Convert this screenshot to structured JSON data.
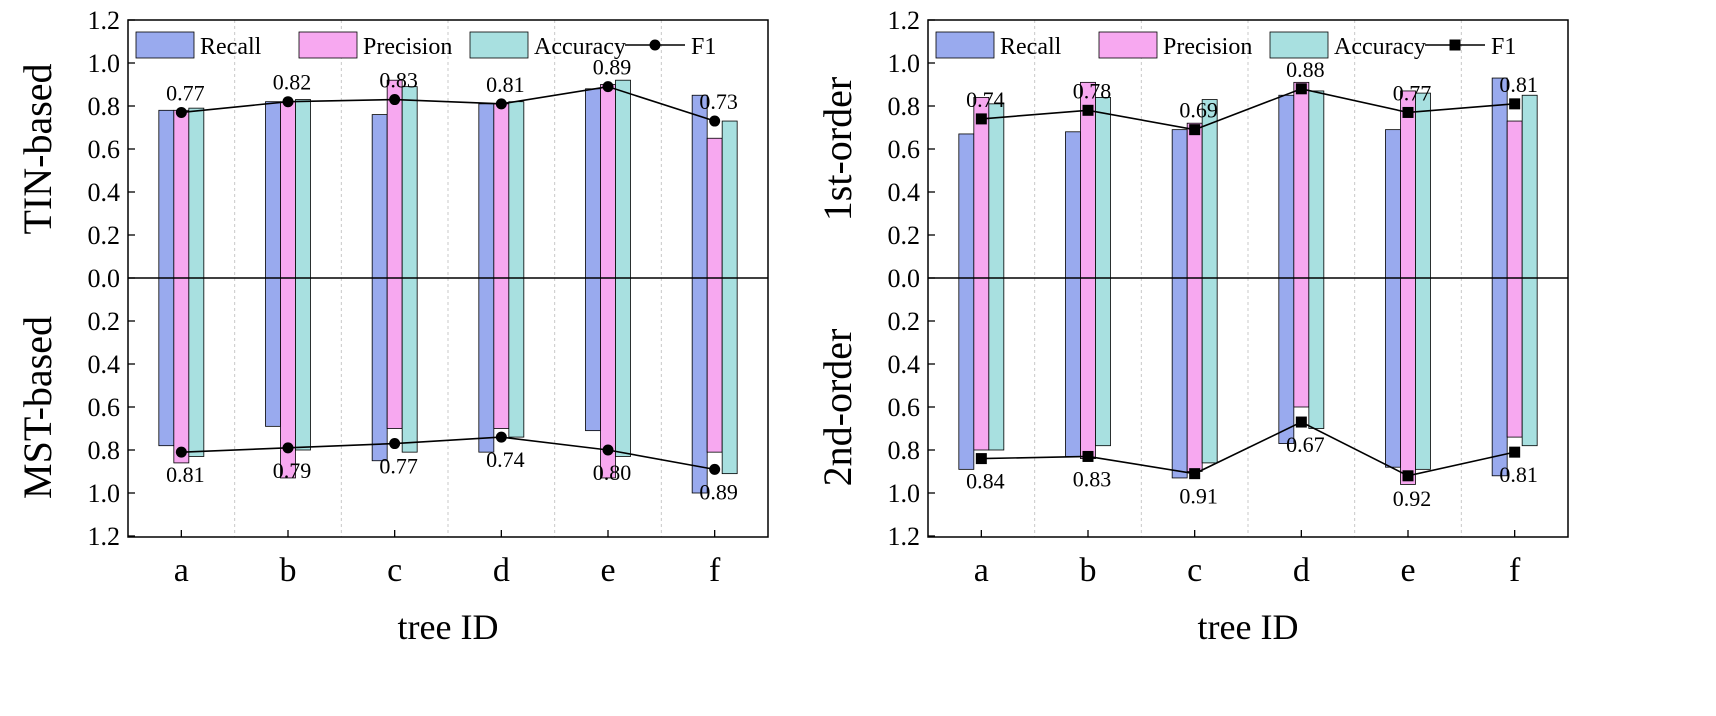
{
  "chart_data": {
    "type": "bar",
    "categories": [
      "a",
      "b",
      "c",
      "d",
      "e",
      "f"
    ],
    "xlabel": "tree ID",
    "yaxis_ticks": [
      "0.0",
      "0.2",
      "0.4",
      "0.6",
      "0.8",
      "1.0",
      "1.2"
    ],
    "legend_labels": [
      "Recall",
      "Precision",
      "Accuracy",
      "F1"
    ],
    "colors": {
      "recall": "#99aaee",
      "precision": "#f7a8f0",
      "accuracy": "#a8e0e0",
      "bar_edge": "#000000",
      "line": "#000000",
      "grid": "#c8c8c8"
    },
    "panels": [
      {
        "ylabel": "TIN-based",
        "direction": "up",
        "ylim": [
          0,
          1.2
        ],
        "marker": "circle",
        "series": {
          "Recall": [
            0.78,
            0.82,
            0.76,
            0.81,
            0.88,
            0.85
          ],
          "Precision": [
            0.78,
            0.82,
            0.92,
            0.81,
            0.9,
            0.65
          ],
          "Accuracy": [
            0.79,
            0.83,
            0.89,
            0.82,
            0.92,
            0.73
          ],
          "F1": [
            0.77,
            0.82,
            0.83,
            0.81,
            0.89,
            0.73
          ]
        },
        "f1_labels": [
          "0.77",
          "0.82",
          "0.83",
          "0.81",
          "0.89",
          "0.73"
        ]
      },
      {
        "ylabel": "MST-based",
        "direction": "down",
        "ylim": [
          0,
          1.2
        ],
        "marker": "circle",
        "series": {
          "Recall": [
            0.78,
            0.69,
            0.85,
            0.81,
            0.71,
            1.0
          ],
          "Precision": [
            0.86,
            0.93,
            0.7,
            0.7,
            0.93,
            0.81
          ],
          "Accuracy": [
            0.83,
            0.8,
            0.81,
            0.74,
            0.83,
            0.91
          ],
          "F1": [
            0.81,
            0.79,
            0.77,
            0.74,
            0.8,
            0.89
          ]
        },
        "f1_labels": [
          "0.81",
          "0.79",
          "0.77",
          "0.74",
          "0.80",
          "0.89"
        ]
      },
      {
        "ylabel": "1st-order",
        "direction": "up",
        "ylim": [
          0,
          1.2
        ],
        "marker": "square",
        "series": {
          "Recall": [
            0.67,
            0.68,
            0.69,
            0.85,
            0.69,
            0.93
          ],
          "Precision": [
            0.84,
            0.91,
            0.72,
            0.91,
            0.87,
            0.73
          ],
          "Accuracy": [
            0.81,
            0.84,
            0.83,
            0.87,
            0.86,
            0.85
          ],
          "F1": [
            0.74,
            0.78,
            0.69,
            0.88,
            0.77,
            0.81
          ]
        },
        "f1_labels": [
          "0.74",
          "0.78",
          "0.69",
          "0.88",
          "0.77",
          "0.81"
        ]
      },
      {
        "ylabel": "2nd-order",
        "direction": "down",
        "ylim": [
          0,
          1.2
        ],
        "marker": "square",
        "series": {
          "Recall": [
            0.89,
            0.83,
            0.93,
            0.77,
            0.88,
            0.92
          ],
          "Precision": [
            0.8,
            0.84,
            0.9,
            0.6,
            0.96,
            0.74
          ],
          "Accuracy": [
            0.8,
            0.78,
            0.86,
            0.7,
            0.89,
            0.78
          ],
          "F1": [
            0.84,
            0.83,
            0.91,
            0.67,
            0.92,
            0.81
          ]
        },
        "f1_labels": [
          "0.84",
          "0.83",
          "0.91",
          "0.67",
          "0.92",
          "0.81"
        ]
      }
    ]
  }
}
